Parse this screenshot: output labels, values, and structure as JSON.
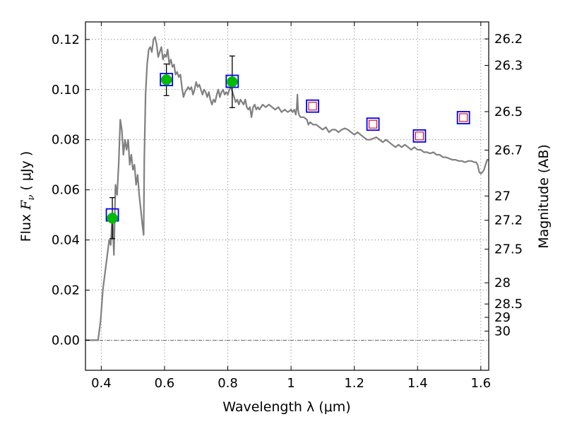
{
  "chart_data": {
    "type": "scatter",
    "xlabel": "Wavelength  λ (μm)",
    "ylabel_text": "Flux  ",
    "ylabel_symbol": "F",
    "ylabel_subscript": "ν",
    "ylabel_unit": "  ( μJy )",
    "y2label": "Magnitude (AB)",
    "xlim": [
      0.35,
      1.625
    ],
    "ylim": [
      -0.012,
      0.127
    ],
    "grid": true,
    "x_ticks": [
      0.4,
      0.6,
      0.8,
      1.0,
      1.2,
      1.4,
      1.6
    ],
    "x_tick_labels": [
      "0.4",
      "0.6",
      "0.8",
      "1",
      "1.2",
      "1.4",
      "1.6"
    ],
    "y_ticks": [
      0.0,
      0.02,
      0.04,
      0.06,
      0.08,
      0.1,
      0.12
    ],
    "y_tick_labels": [
      "0.00",
      "0.02",
      "0.04",
      "0.06",
      "0.08",
      "0.10",
      "0.12"
    ],
    "mag_ticks": [
      26.2,
      26.3,
      26.5,
      26.7,
      27,
      27.2,
      27.5,
      28,
      28.5,
      29,
      30
    ],
    "mag_tick_labels": [
      "26.2",
      "26.3",
      "26.5",
      "26.7",
      "27",
      "27.2",
      "27.5",
      "28",
      "28.5",
      "29",
      "30"
    ],
    "colors": {
      "sed": "#808080",
      "detection": "#00bb00",
      "model_box": "#0000ee",
      "upper_limit": "#dd0000",
      "error_bar": "#000000"
    },
    "detections": [
      {
        "x": 0.435,
        "y": 0.0487,
        "yerr": 0.0082
      },
      {
        "x": 0.606,
        "y": 0.1039,
        "yerr": 0.0063
      },
      {
        "x": 0.814,
        "y": 0.1031,
        "yerr": 0.0103
      }
    ],
    "model_photometry": [
      {
        "x": 0.435,
        "y": 0.05
      },
      {
        "x": 0.606,
        "y": 0.104
      },
      {
        "x": 0.814,
        "y": 0.1033
      },
      {
        "x": 1.068,
        "y": 0.0934
      },
      {
        "x": 1.259,
        "y": 0.0862
      },
      {
        "x": 1.406,
        "y": 0.0815
      },
      {
        "x": 1.545,
        "y": 0.0888
      }
    ],
    "upper_limits": [
      {
        "x": 1.068,
        "y": 0.0934
      },
      {
        "x": 1.259,
        "y": 0.0862
      },
      {
        "x": 1.406,
        "y": 0.0815
      },
      {
        "x": 1.545,
        "y": 0.0888
      }
    ],
    "sed_curve": [
      [
        0.35,
        0.0
      ],
      [
        0.38,
        0.0
      ],
      [
        0.39,
        0.0
      ],
      [
        0.398,
        0.008
      ],
      [
        0.405,
        0.02
      ],
      [
        0.415,
        0.03
      ],
      [
        0.425,
        0.04
      ],
      [
        0.43,
        0.038
      ],
      [
        0.435,
        0.05
      ],
      [
        0.44,
        0.034
      ],
      [
        0.445,
        0.062
      ],
      [
        0.45,
        0.058
      ],
      [
        0.455,
        0.07
      ],
      [
        0.46,
        0.088
      ],
      [
        0.465,
        0.084
      ],
      [
        0.47,
        0.074
      ],
      [
        0.475,
        0.08
      ],
      [
        0.48,
        0.076
      ],
      [
        0.485,
        0.08
      ],
      [
        0.49,
        0.07
      ],
      [
        0.495,
        0.074
      ],
      [
        0.5,
        0.068
      ],
      [
        0.505,
        0.07
      ],
      [
        0.51,
        0.062
      ],
      [
        0.515,
        0.066
      ],
      [
        0.52,
        0.058
      ],
      [
        0.525,
        0.052
      ],
      [
        0.53,
        0.046
      ],
      [
        0.534,
        0.042
      ],
      [
        0.536,
        0.072
      ],
      [
        0.54,
        0.098
      ],
      [
        0.545,
        0.11
      ],
      [
        0.55,
        0.116
      ],
      [
        0.555,
        0.117
      ],
      [
        0.56,
        0.115
      ],
      [
        0.565,
        0.12
      ],
      [
        0.57,
        0.121
      ],
      [
        0.575,
        0.118
      ],
      [
        0.58,
        0.113
      ],
      [
        0.585,
        0.115
      ],
      [
        0.59,
        0.117
      ],
      [
        0.595,
        0.112
      ],
      [
        0.6,
        0.114
      ],
      [
        0.605,
        0.113
      ],
      [
        0.61,
        0.116
      ],
      [
        0.615,
        0.11
      ],
      [
        0.62,
        0.112
      ],
      [
        0.625,
        0.109
      ],
      [
        0.63,
        0.11
      ],
      [
        0.635,
        0.106
      ],
      [
        0.64,
        0.107
      ],
      [
        0.645,
        0.105
      ],
      [
        0.65,
        0.106
      ],
      [
        0.655,
        0.101
      ],
      [
        0.66,
        0.097
      ],
      [
        0.665,
        0.099
      ],
      [
        0.67,
        0.1
      ],
      [
        0.675,
        0.101
      ],
      [
        0.68,
        0.1
      ],
      [
        0.685,
        0.101
      ],
      [
        0.69,
        0.098
      ],
      [
        0.695,
        0.1
      ],
      [
        0.7,
        0.103
      ],
      [
        0.705,
        0.101
      ],
      [
        0.71,
        0.102
      ],
      [
        0.715,
        0.1
      ],
      [
        0.72,
        0.098
      ],
      [
        0.725,
        0.1
      ],
      [
        0.73,
        0.099
      ],
      [
        0.735,
        0.097
      ],
      [
        0.74,
        0.099
      ],
      [
        0.745,
        0.096
      ],
      [
        0.75,
        0.094
      ],
      [
        0.755,
        0.096
      ],
      [
        0.76,
        0.095
      ],
      [
        0.765,
        0.098
      ],
      [
        0.77,
        0.1
      ],
      [
        0.775,
        0.097
      ],
      [
        0.78,
        0.099
      ],
      [
        0.785,
        0.1
      ],
      [
        0.79,
        0.098
      ],
      [
        0.795,
        0.099
      ],
      [
        0.8,
        0.098
      ],
      [
        0.805,
        0.1
      ],
      [
        0.81,
        0.101
      ],
      [
        0.815,
        0.099
      ],
      [
        0.82,
        0.097
      ],
      [
        0.825,
        0.095
      ],
      [
        0.83,
        0.096
      ],
      [
        0.835,
        0.094
      ],
      [
        0.84,
        0.096
      ],
      [
        0.845,
        0.095
      ],
      [
        0.85,
        0.094
      ],
      [
        0.855,
        0.096
      ],
      [
        0.86,
        0.093
      ],
      [
        0.865,
        0.092
      ],
      [
        0.87,
        0.093
      ],
      [
        0.875,
        0.089
      ],
      [
        0.88,
        0.093
      ],
      [
        0.885,
        0.094
      ],
      [
        0.89,
        0.092
      ],
      [
        0.895,
        0.093
      ],
      [
        0.9,
        0.092
      ],
      [
        0.91,
        0.094
      ],
      [
        0.92,
        0.093
      ],
      [
        0.93,
        0.094
      ],
      [
        0.94,
        0.093
      ],
      [
        0.95,
        0.092
      ],
      [
        0.96,
        0.093
      ],
      [
        0.97,
        0.091
      ],
      [
        0.98,
        0.092
      ],
      [
        0.99,
        0.091
      ],
      [
        1.0,
        0.092
      ],
      [
        1.005,
        0.091
      ],
      [
        1.01,
        0.092
      ],
      [
        1.015,
        0.09
      ],
      [
        1.018,
        0.093
      ],
      [
        1.02,
        0.098
      ],
      [
        1.022,
        0.092
      ],
      [
        1.025,
        0.09
      ],
      [
        1.03,
        0.089
      ],
      [
        1.04,
        0.089
      ],
      [
        1.05,
        0.088
      ],
      [
        1.055,
        0.086
      ],
      [
        1.06,
        0.087
      ],
      [
        1.07,
        0.086
      ],
      [
        1.08,
        0.086
      ],
      [
        1.09,
        0.085
      ],
      [
        1.1,
        0.084
      ],
      [
        1.11,
        0.085
      ],
      [
        1.12,
        0.083
      ],
      [
        1.13,
        0.084
      ],
      [
        1.14,
        0.084
      ],
      [
        1.15,
        0.083
      ],
      [
        1.16,
        0.084
      ],
      [
        1.17,
        0.0845
      ],
      [
        1.18,
        0.084
      ],
      [
        1.19,
        0.083
      ],
      [
        1.2,
        0.082
      ],
      [
        1.21,
        0.083
      ],
      [
        1.22,
        0.082
      ],
      [
        1.23,
        0.081
      ],
      [
        1.24,
        0.08
      ],
      [
        1.25,
        0.08
      ],
      [
        1.26,
        0.0805
      ],
      [
        1.27,
        0.081
      ],
      [
        1.28,
        0.08
      ],
      [
        1.29,
        0.079
      ],
      [
        1.3,
        0.08
      ],
      [
        1.31,
        0.079
      ],
      [
        1.32,
        0.078
      ],
      [
        1.33,
        0.077
      ],
      [
        1.34,
        0.078
      ],
      [
        1.35,
        0.077
      ],
      [
        1.36,
        0.078
      ],
      [
        1.37,
        0.077
      ],
      [
        1.38,
        0.076
      ],
      [
        1.39,
        0.077
      ],
      [
        1.4,
        0.076
      ],
      [
        1.41,
        0.076
      ],
      [
        1.42,
        0.075
      ],
      [
        1.43,
        0.075
      ],
      [
        1.44,
        0.0745
      ],
      [
        1.45,
        0.075
      ],
      [
        1.46,
        0.074
      ],
      [
        1.47,
        0.074
      ],
      [
        1.48,
        0.073
      ],
      [
        1.49,
        0.073
      ],
      [
        1.5,
        0.0725
      ],
      [
        1.51,
        0.072
      ],
      [
        1.52,
        0.072
      ],
      [
        1.53,
        0.0715
      ],
      [
        1.54,
        0.0715
      ],
      [
        1.55,
        0.071
      ],
      [
        1.56,
        0.0715
      ],
      [
        1.57,
        0.0715
      ],
      [
        1.58,
        0.071
      ],
      [
        1.585,
        0.071
      ],
      [
        1.59,
        0.07
      ],
      [
        1.595,
        0.067
      ],
      [
        1.6,
        0.0665
      ],
      [
        1.605,
        0.067
      ],
      [
        1.61,
        0.068
      ],
      [
        1.615,
        0.07
      ],
      [
        1.62,
        0.072
      ],
      [
        1.625,
        0.072
      ]
    ]
  }
}
